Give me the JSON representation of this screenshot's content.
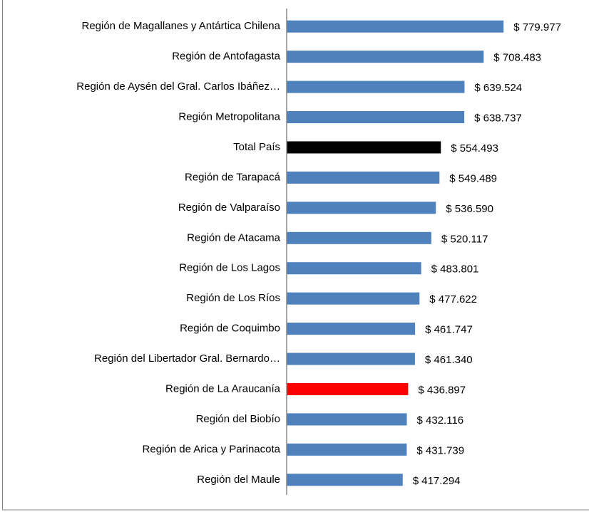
{
  "chart_data": {
    "type": "bar",
    "orientation": "horizontal",
    "categories": [
      "Región de Magallanes y Antártica Chilena",
      "Región de Antofagasta",
      "Región de Aysén del Gral. Carlos Ibáñez…",
      "Región Metropolitana",
      "Total País",
      "Región de Tarapacá",
      "Región de Valparaíso",
      "Región de Atacama",
      "Región de Los Lagos",
      "Región de Los Ríos",
      "Región de Coquimbo",
      "Región del Libertador Gral. Bernardo…",
      "Región de La Araucanía",
      "Región del Biobío",
      "Región de Arica y Parinacota",
      "Región del Maule"
    ],
    "values": [
      779977,
      708483,
      639524,
      638737,
      554493,
      549489,
      536590,
      520117,
      483801,
      477622,
      461747,
      461340,
      436897,
      432116,
      431739,
      417294
    ],
    "value_labels": [
      "$ 779.977",
      "$ 708.483",
      "$ 639.524",
      "$ 638.737",
      "$ 554.493",
      "$ 549.489",
      "$ 536.590",
      "$ 520.117",
      "$ 483.801",
      "$ 477.622",
      "$ 461.747",
      "$ 461.340",
      "$ 436.897",
      "$ 432.116",
      "$ 431.739",
      "$ 417.294"
    ],
    "colors": [
      "#4f81bd",
      "#4f81bd",
      "#4f81bd",
      "#4f81bd",
      "#000000",
      "#4f81bd",
      "#4f81bd",
      "#4f81bd",
      "#4f81bd",
      "#4f81bd",
      "#4f81bd",
      "#4f81bd",
      "#ff0000",
      "#4f81bd",
      "#4f81bd",
      "#4f81bd"
    ],
    "xlim": [
      0,
      1000000
    ]
  }
}
